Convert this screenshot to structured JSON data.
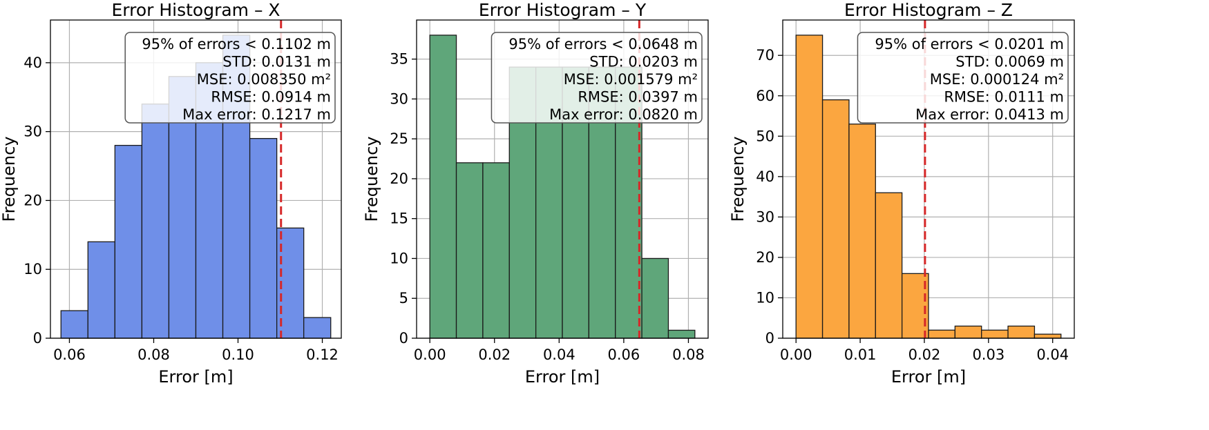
{
  "chart_data": [
    {
      "type": "bar",
      "title": "Error Histogram – X",
      "xlabel": "Error [m]",
      "ylabel": "Frequency",
      "color": "#6f8fe8",
      "bin_edges": [
        0.058,
        0.0644,
        0.0708,
        0.0772,
        0.0836,
        0.09,
        0.0964,
        0.1028,
        0.1092,
        0.1156,
        0.122
      ],
      "values": [
        4,
        14,
        28,
        34,
        38,
        40,
        44,
        29,
        16,
        3
      ],
      "xlim": [
        0.0555,
        0.1245
      ],
      "ylim": [
        0,
        46.2
      ],
      "xticks": [
        0.06,
        0.08,
        0.1,
        0.12
      ],
      "xtick_labels": [
        "0.06",
        "0.08",
        "0.10",
        "0.12"
      ],
      "yticks": [
        0,
        10,
        20,
        30,
        40
      ],
      "ytick_labels": [
        "0",
        "10",
        "20",
        "30",
        "40"
      ],
      "percentile_line": 0.1102,
      "grid": true,
      "stats": [
        "95% of errors < 0.1102 m",
        "STD: 0.0131 m",
        "MSE: 0.008350 m²",
        "RMSE: 0.0914 m",
        "Max error: 0.1217 m"
      ]
    },
    {
      "type": "bar",
      "title": "Error Histogram – Y",
      "xlabel": "Error [m]",
      "ylabel": "Frequency",
      "color": "#5fa67a",
      "bin_edges": [
        0.0,
        0.0082,
        0.0164,
        0.0246,
        0.0328,
        0.041,
        0.0492,
        0.0574,
        0.0656,
        0.0738,
        0.082
      ],
      "values": [
        38,
        22,
        22,
        34,
        34,
        34,
        34,
        34,
        10,
        1
      ],
      "xlim": [
        -0.0041,
        0.0861
      ],
      "ylim": [
        0,
        39.9
      ],
      "xticks": [
        0.0,
        0.02,
        0.04,
        0.06,
        0.08
      ],
      "xtick_labels": [
        "0.00",
        "0.02",
        "0.04",
        "0.06",
        "0.08"
      ],
      "yticks": [
        0,
        5,
        10,
        15,
        20,
        25,
        30,
        35
      ],
      "ytick_labels": [
        "0",
        "5",
        "10",
        "15",
        "20",
        "25",
        "30",
        "35"
      ],
      "percentile_line": 0.0648,
      "grid": true,
      "stats": [
        "95% of errors < 0.0648 m",
        "STD: 0.0203 m",
        "MSE: 0.001579 m²",
        "RMSE: 0.0397 m",
        "Max error: 0.0820 m"
      ]
    },
    {
      "type": "bar",
      "title": "Error Histogram – Z",
      "xlabel": "Error [m]",
      "ylabel": "Frequency",
      "color": "#fba640",
      "bin_edges": [
        0.0,
        0.00413,
        0.00826,
        0.01239,
        0.01652,
        0.02065,
        0.02478,
        0.02891,
        0.03304,
        0.03717,
        0.0413
      ],
      "values": [
        75,
        59,
        53,
        36,
        16,
        2,
        3,
        2,
        3,
        1
      ],
      "xlim": [
        -0.00207,
        0.04337
      ],
      "ylim": [
        0,
        78.75
      ],
      "xticks": [
        0.0,
        0.01,
        0.02,
        0.03,
        0.04
      ],
      "xtick_labels": [
        "0.00",
        "0.01",
        "0.02",
        "0.03",
        "0.04"
      ],
      "yticks": [
        0,
        10,
        20,
        30,
        40,
        50,
        60,
        70
      ],
      "ytick_labels": [
        "0",
        "10",
        "20",
        "30",
        "40",
        "50",
        "60",
        "70"
      ],
      "percentile_line": 0.0201,
      "grid": true,
      "stats": [
        "95% of errors < 0.0201 m",
        "STD: 0.0069 m",
        "MSE: 0.000124 m²",
        "RMSE: 0.0111 m",
        "Max error: 0.0413 m"
      ]
    }
  ],
  "colors": {
    "percentile_line": "#d62728",
    "bar_edge": "#1a1a1a",
    "grid": "#b0b0b0"
  }
}
